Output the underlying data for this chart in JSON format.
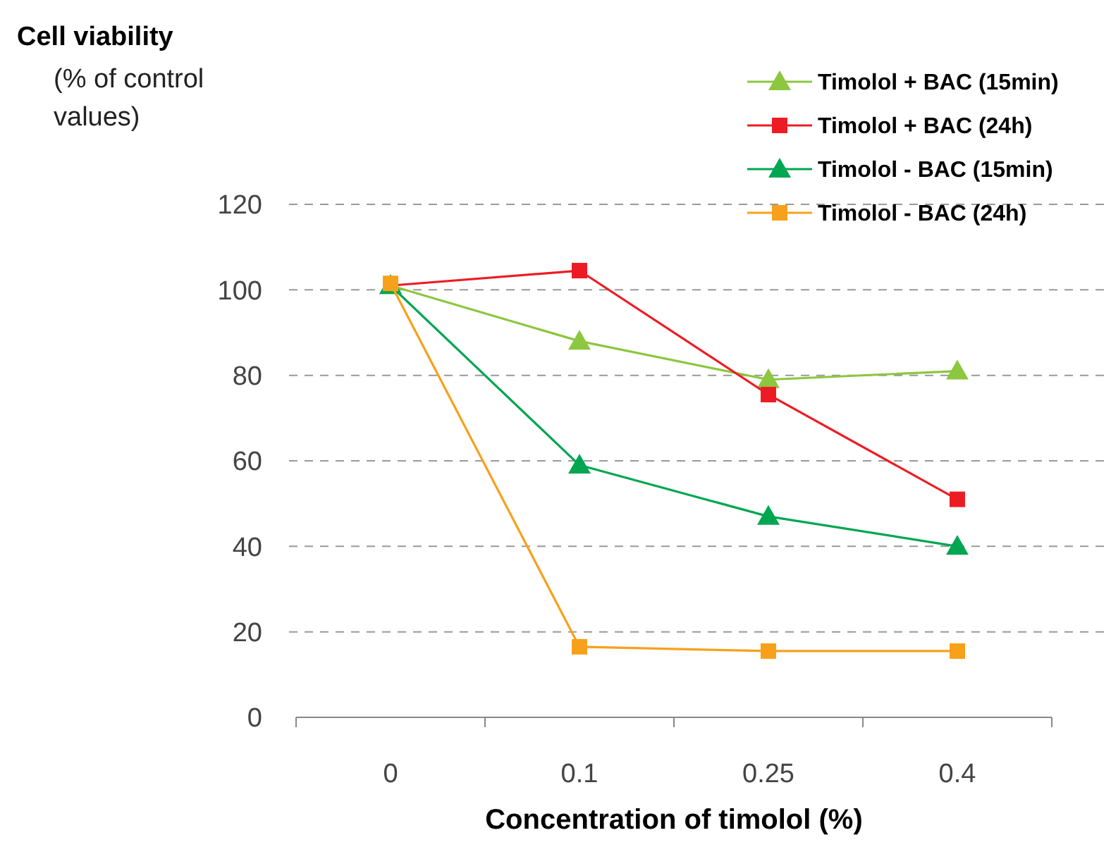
{
  "chart_data": {
    "type": "line",
    "title": "Cell viability",
    "ylabel": "(% of control values)",
    "xlabel": "Concentration of timolol (%)",
    "categories": [
      "0",
      "0.1",
      "0.25",
      "0.4"
    ],
    "series": [
      {
        "name": "Timolol + BAC (15min)",
        "color": "#8dc63f",
        "marker": "triangle",
        "values": [
          101,
          88,
          79,
          81
        ]
      },
      {
        "name": "Timolol + BAC (24h)",
        "color": "#ed1c24",
        "marker": "square",
        "values": [
          101,
          104.5,
          75.5,
          51
        ]
      },
      {
        "name": "Timolol - BAC (15min)",
        "color": "#00a651",
        "marker": "triangle",
        "values": [
          101,
          59,
          47,
          40
        ]
      },
      {
        "name": "Timolol - BAC (24h)",
        "color": "#f7a11a",
        "marker": "square",
        "values": [
          101.5,
          16.5,
          15.5,
          15.5
        ]
      }
    ],
    "ylim": [
      0,
      120
    ],
    "yticks": [
      0,
      20,
      40,
      60,
      80,
      100,
      120
    ],
    "grid": "y",
    "legend": "top right",
    "line_style": "solid"
  }
}
